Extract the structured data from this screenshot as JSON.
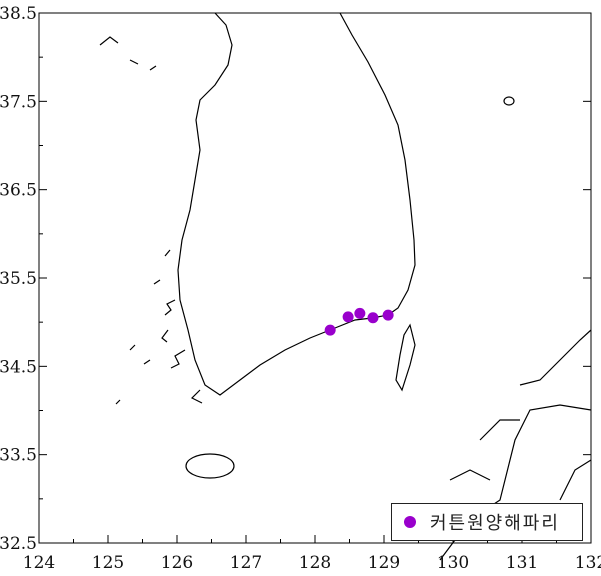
{
  "map": {
    "type": "point map",
    "x_axis": {
      "range": [
        124,
        132
      ],
      "ticks": [
        "124",
        "125",
        "126",
        "127",
        "128",
        "129",
        "130",
        "131",
        "132"
      ]
    },
    "y_axis": {
      "range": [
        32.5,
        38.5
      ],
      "ticks": [
        "38.5",
        "37.5",
        "36.5",
        "35.5",
        "34.5",
        "33.5",
        "32.5"
      ]
    },
    "marker_color": "#9900cc",
    "points": [
      {
        "lon": 128.22,
        "lat": 34.91
      },
      {
        "lon": 128.48,
        "lat": 35.06
      },
      {
        "lon": 128.65,
        "lat": 35.1
      },
      {
        "lon": 128.84,
        "lat": 35.05
      },
      {
        "lon": 129.06,
        "lat": 35.08
      }
    ],
    "legend": {
      "label": "커튼원양해파리",
      "position": "bottom-right"
    }
  }
}
